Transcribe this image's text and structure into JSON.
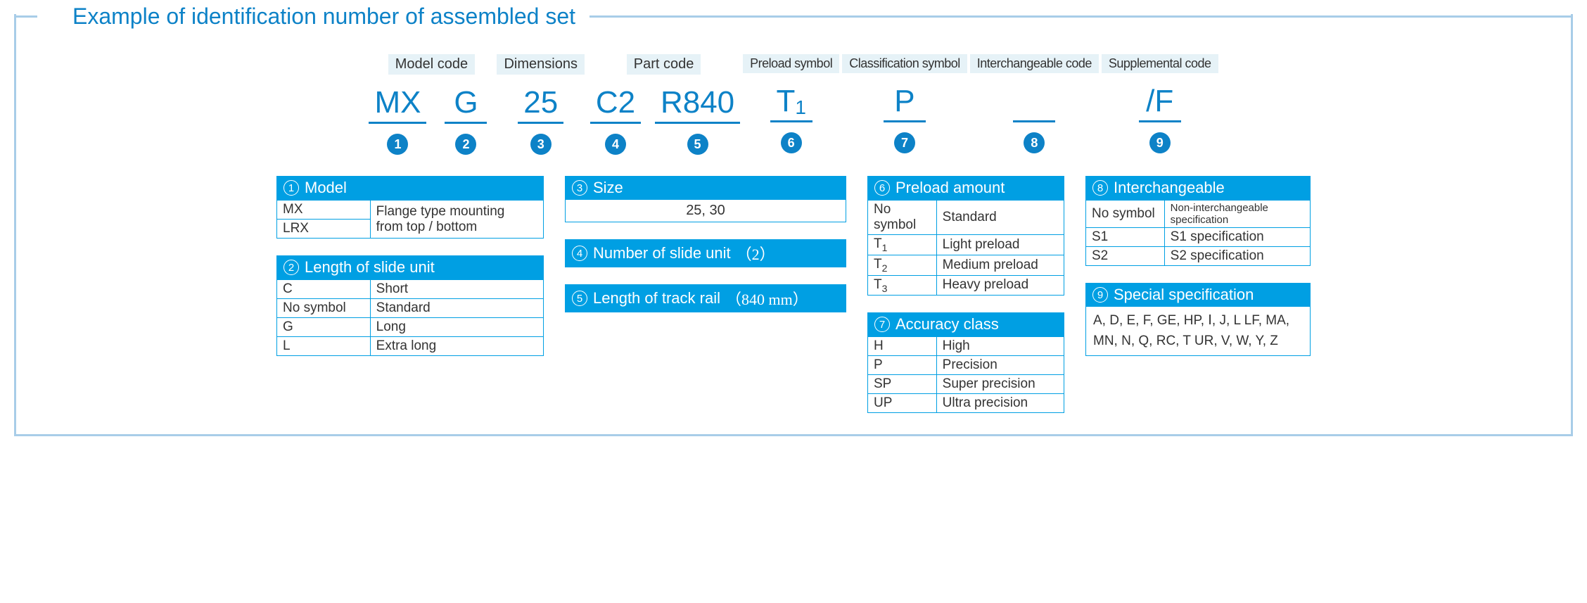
{
  "title": "Example of identification number of assembled set",
  "headers": {
    "model_code": "Model code",
    "dimensions": "Dimensions",
    "part_code": "Part code",
    "preload_symbol": "Preload symbol",
    "classification_symbol": "Classification symbol",
    "interchangeable_code": "Interchangeable code",
    "supplemental_code": "Supplemental code"
  },
  "codes": {
    "c1": "MX",
    "c2": "G",
    "c3": "25",
    "c4": "C2",
    "c5": "R840",
    "c6_main": "T",
    "c6_sub": "1",
    "c7": "P",
    "c8": "",
    "c9": "/F"
  },
  "badges": {
    "b1": "1",
    "b2": "2",
    "b3": "3",
    "b4": "4",
    "b5": "5",
    "b6": "6",
    "b7": "7",
    "b8": "8",
    "b9": "9"
  },
  "t1": {
    "title": "Model",
    "r1c1": "MX",
    "r1c2": "Flange type mounting",
    "r2c1": "LRX",
    "r2c2": "from top / bottom"
  },
  "t2": {
    "title": "Length of slide unit",
    "r1c1": "C",
    "r1c2": "Short",
    "r2c1": "No symbol",
    "r2c2": "Standard",
    "r3c1": "G",
    "r3c2": "Long",
    "r4c1": "L",
    "r4c2": "Extra long"
  },
  "t3": {
    "title": "Size",
    "body": "25, 30"
  },
  "t4": {
    "title_a": "Number of slide unit  ",
    "title_b": "（2）"
  },
  "t5": {
    "title_a": "Length of track rail  ",
    "title_b": "（840 mm）"
  },
  "t6": {
    "title": "Preload amount",
    "r1c1": "No symbol",
    "r1c2": "Standard",
    "r2c1_a": "T",
    "r2c1_b": "1",
    "r2c2": "Light preload",
    "r3c1_a": "T",
    "r3c1_b": "2",
    "r3c2": "Medium preload",
    "r4c1_a": "T",
    "r4c1_b": "3",
    "r4c2": "Heavy preload"
  },
  "t7": {
    "title": "Accuracy class",
    "r1c1": "H",
    "r1c2": "High",
    "r2c1": "P",
    "r2c2": "Precision",
    "r3c1": "SP",
    "r3c2": "Super precision",
    "r4c1": "UP",
    "r4c2": "Ultra precision"
  },
  "t8": {
    "title": "Interchangeable",
    "r1c1": "No symbol",
    "r1c2": "Non-interchangeable specification",
    "r2c1": "S1",
    "r2c2": "S1 specification",
    "r3c1": "S2",
    "r3c2": "S2 specification"
  },
  "t9": {
    "title": "Special specification",
    "body": "A, D, E, F, GE, HP, Ⅰ, J, L LF, MA, MN, N, Q, RC, T UR, V, W, Y, Z"
  },
  "colors": {
    "accent": "#009fe3",
    "text_blue": "#0d82c7",
    "frame": "#a8cde8"
  }
}
